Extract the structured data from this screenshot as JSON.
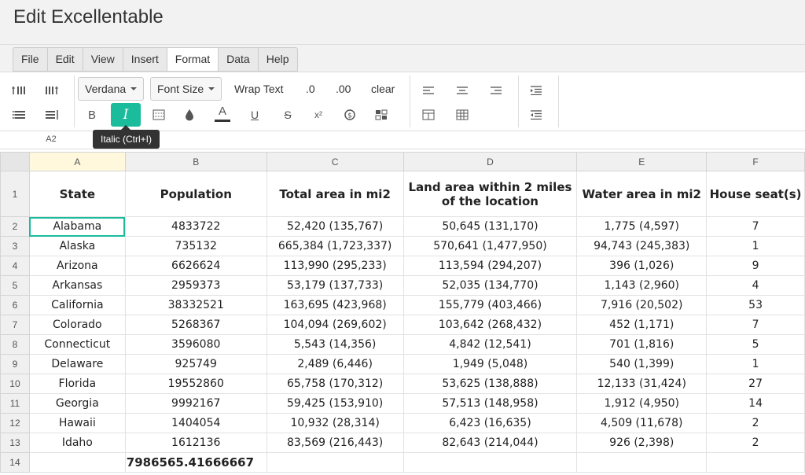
{
  "app": {
    "title": "Edit Excellentable"
  },
  "menu": [
    {
      "label": "File"
    },
    {
      "label": "Edit"
    },
    {
      "label": "View"
    },
    {
      "label": "Insert"
    },
    {
      "label": "Format",
      "active": true
    },
    {
      "label": "Data"
    },
    {
      "label": "Help"
    }
  ],
  "ribbon": {
    "font_family": "Verdana",
    "font_size": "Font Size",
    "wrap_text": "Wrap Text",
    "decrease_decimal": ".0",
    "increase_decimal": ".00",
    "clear": "clear",
    "bold": "B",
    "italic": "I",
    "text_color": "A",
    "underline": "U",
    "strikethrough": "S",
    "superscript": "x²"
  },
  "tooltip": "Italic (Ctrl+I)",
  "formula_bar": {
    "cell_ref": "A2"
  },
  "accent_color": "#1abc9c",
  "sheet": {
    "columns": [
      "A",
      "B",
      "C",
      "D",
      "E",
      "F"
    ],
    "headers": [
      "State",
      "Population",
      "Total area in mi2",
      "Land area within 2 miles of the location",
      "Water area in mi2",
      "House seat(s)"
    ],
    "rows": [
      [
        "Alabama",
        "4833722",
        "52,420 (135,767)",
        "50,645 (131,170)",
        "1,775 (4,597)",
        "7"
      ],
      [
        "Alaska",
        "735132",
        "665,384 (1,723,337)",
        "570,641 (1,477,950)",
        "94,743 (245,383)",
        "1"
      ],
      [
        "Arizona",
        "6626624",
        "113,990 (295,233)",
        "113,594 (294,207)",
        "396 (1,026)",
        "9"
      ],
      [
        "Arkansas",
        "2959373",
        "53,179 (137,733)",
        "52,035 (134,770)",
        "1,143 (2,960)",
        "4"
      ],
      [
        "California",
        "38332521",
        "163,695 (423,968)",
        "155,779 (403,466)",
        "7,916 (20,502)",
        "53"
      ],
      [
        "Colorado",
        "5268367",
        "104,094 (269,602)",
        "103,642 (268,432)",
        "452 (1,171)",
        "7"
      ],
      [
        "Connecticut",
        "3596080",
        "5,543 (14,356)",
        "4,842 (12,541)",
        "701 (1,816)",
        "5"
      ],
      [
        "Delaware",
        "925749",
        "2,489 (6,446)",
        "1,949 (5,048)",
        "540 (1,399)",
        "1"
      ],
      [
        "Florida",
        "19552860",
        "65,758 (170,312)",
        "53,625 (138,888)",
        "12,133 (31,424)",
        "27"
      ],
      [
        "Georgia",
        "9992167",
        "59,425 (153,910)",
        "57,513 (148,958)",
        "1,912 (4,950)",
        "14"
      ],
      [
        "Hawaii",
        "1404054",
        "10,932 (28,314)",
        "6,423 (16,635)",
        "4,509 (11,678)",
        "2"
      ],
      [
        "Idaho",
        "1612136",
        "83,569 (216,443)",
        "82,643 (214,044)",
        "926 (2,398)",
        "2"
      ]
    ],
    "total_row_number": "14",
    "total_value": "7986565.41666667"
  }
}
